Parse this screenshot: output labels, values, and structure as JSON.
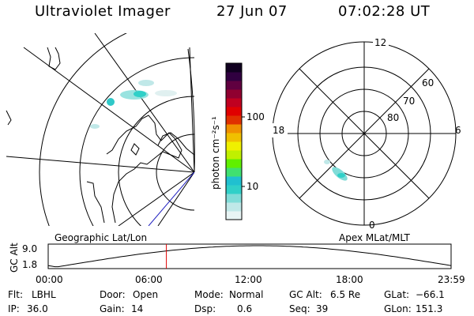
{
  "header": {
    "title": "Ultraviolet Imager",
    "date": "27 Jun 07",
    "time": "07:02:28 UT"
  },
  "geo_panel": {
    "label": "Geographic Lat/Lon"
  },
  "colorbar": {
    "unit": "photon cm⁻²s⁻¹",
    "ticks": [
      "100",
      "10"
    ],
    "colors": [
      "#e8f4f4",
      "#c0e8e8",
      "#80dcd8",
      "#30d0c8",
      "#20c0d0",
      "#40e070",
      "#60f000",
      "#c0f000",
      "#f0f000",
      "#f0c000",
      "#f09000",
      "#e03000",
      "#e00000",
      "#c00020",
      "#900030",
      "#600040",
      "#300040",
      "#100020"
    ]
  },
  "polar_panel": {
    "label": "Apex MLat/MLT",
    "mlt_labels": {
      "top": "12",
      "left": "18",
      "right": "6",
      "bottom": "0"
    },
    "lat_labels": [
      "60",
      "70",
      "80"
    ]
  },
  "timeline": {
    "ylabel": "GC Alt",
    "yticks": [
      "9.0",
      "1.8"
    ],
    "xticks": [
      "00:00",
      "06:00",
      "12:00",
      "18:00",
      "23:59"
    ],
    "marker_hour": 7.04
  },
  "info": {
    "flt_label": "Flt:",
    "flt": "LBHL",
    "ip_label": "IP:",
    "ip": "36.0",
    "door_label": "Door:",
    "door": "Open",
    "gain_label": "Gain:",
    "gain": "14",
    "mode_label": "Mode:",
    "mode": "Normal",
    "dsp_label": "Dsp:",
    "dsp": "0.6",
    "gcalt_label": "GC Alt:",
    "gcalt": "6.5 Re",
    "seq_label": "Seq:",
    "seq": "39",
    "glat_label": "GLat:",
    "glat": "−66.1",
    "glon_label": "GLon:",
    "glon": "151.3"
  }
}
